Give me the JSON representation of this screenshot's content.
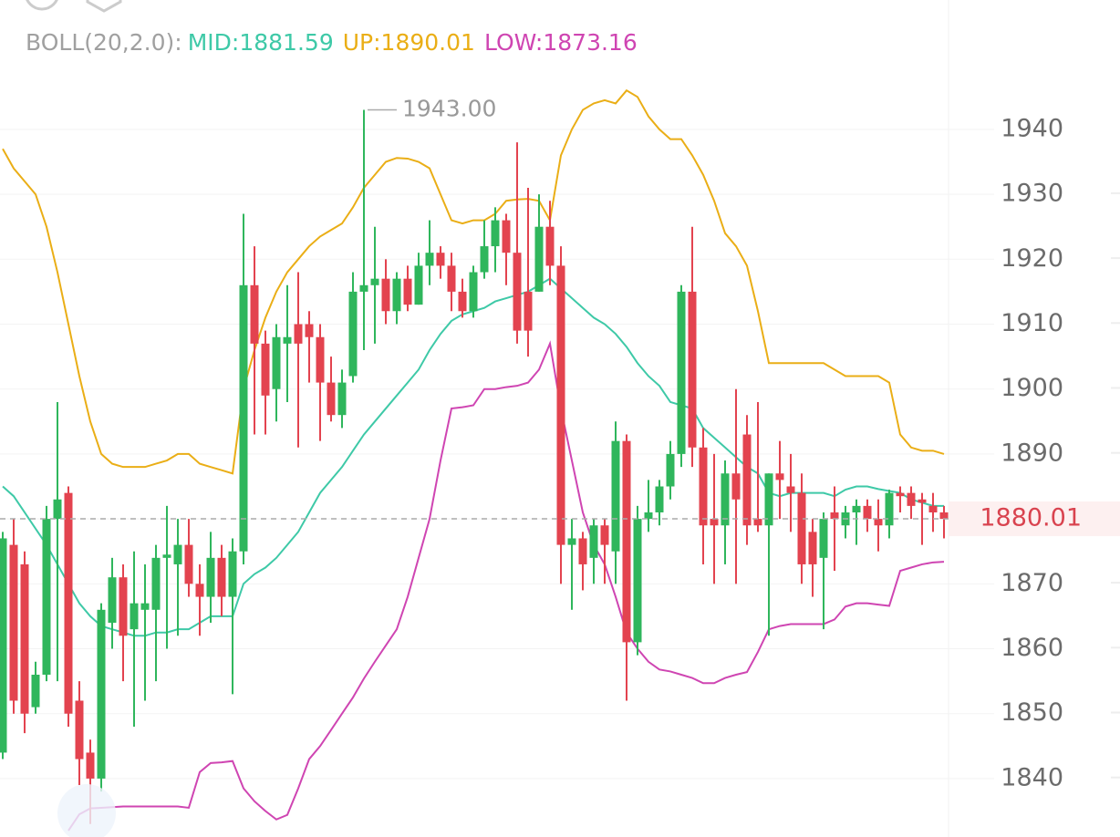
{
  "chart_data": {
    "type": "candlestick",
    "indicator_label": "BOLL(20,2.0):",
    "legend_separator": ":",
    "up_color": "#2fb65c",
    "down_color": "#e3434f",
    "ylim": [
      1831,
      1950
    ],
    "yticks": [
      1840,
      1850,
      1860,
      1870,
      1880,
      1890,
      1900,
      1910,
      1920,
      1930,
      1940
    ],
    "grid": true,
    "last_price": 1880.01,
    "high_label": {
      "value": 1943,
      "label": "1943.00"
    },
    "ohlc": [
      [
        1844,
        1878,
        1843,
        1877
      ],
      [
        1876,
        1880,
        1850,
        1852
      ],
      [
        1873,
        1875,
        1847,
        1850
      ],
      [
        1851,
        1858,
        1850,
        1856
      ],
      [
        1856,
        1882,
        1855,
        1880
      ],
      [
        1880,
        1898,
        1855,
        1883
      ],
      [
        1884,
        1885,
        1848,
        1850
      ],
      [
        1852,
        1855,
        1839,
        1843
      ],
      [
        1844,
        1846,
        1833,
        1840
      ],
      [
        1840,
        1867,
        1838,
        1866
      ],
      [
        1864,
        1874,
        1860,
        1871
      ],
      [
        1871,
        1873,
        1855,
        1862
      ],
      [
        1863,
        1875,
        1848,
        1867
      ],
      [
        1866,
        1873,
        1852,
        1867
      ],
      [
        1866,
        1876,
        1855,
        1874
      ],
      [
        1874,
        1882,
        1860,
        1874.5
      ],
      [
        1873,
        1880,
        1862,
        1876
      ],
      [
        1876,
        1880,
        1868,
        1870
      ],
      [
        1870,
        1873,
        1862,
        1868
      ],
      [
        1868,
        1878,
        1864,
        1874
      ],
      [
        1874,
        1876,
        1865,
        1868
      ],
      [
        1868,
        1877,
        1853,
        1875
      ],
      [
        1875,
        1927,
        1873,
        1916
      ],
      [
        1916,
        1922,
        1893,
        1907
      ],
      [
        1907,
        1909,
        1893,
        1899
      ],
      [
        1900,
        1910,
        1895,
        1908
      ],
      [
        1907,
        1916,
        1898,
        1908
      ],
      [
        1910,
        1918,
        1891,
        1907
      ],
      [
        1910,
        1912,
        1901,
        1908
      ],
      [
        1908,
        1910,
        1892,
        1901
      ],
      [
        1901,
        1905,
        1895,
        1896
      ],
      [
        1896,
        1903,
        1894,
        1901
      ],
      [
        1902,
        1918,
        1901,
        1915
      ],
      [
        1915,
        1943,
        1906,
        1916
      ],
      [
        1916,
        1925,
        1907,
        1917
      ],
      [
        1917,
        1920,
        1910,
        1912
      ],
      [
        1912,
        1918,
        1910,
        1917
      ],
      [
        1917,
        1919,
        1912,
        1913
      ],
      [
        1913,
        1921,
        1913,
        1919
      ],
      [
        1919,
        1926,
        1916,
        1921
      ],
      [
        1921,
        1922,
        1917,
        1919
      ],
      [
        1919,
        1921,
        1912,
        1915
      ],
      [
        1915,
        1917,
        1911,
        1912
      ],
      [
        1912,
        1919,
        1911,
        1918
      ],
      [
        1918,
        1926,
        1917,
        1922
      ],
      [
        1922,
        1928,
        1918,
        1926
      ],
      [
        1926,
        1927,
        1916,
        1921
      ],
      [
        1921,
        1938,
        1907,
        1909
      ],
      [
        1915,
        1931,
        1905,
        1909
      ],
      [
        1915,
        1930,
        1915,
        1925
      ],
      [
        1925,
        1929,
        1916,
        1919
      ],
      [
        1919,
        1922,
        1870,
        1876
      ],
      [
        1876,
        1880,
        1866,
        1877
      ],
      [
        1877,
        1878,
        1869,
        1873
      ],
      [
        1874,
        1880,
        1870,
        1879
      ],
      [
        1879,
        1880,
        1870,
        1876
      ],
      [
        1875,
        1895,
        1870,
        1892
      ],
      [
        1892,
        1893,
        1852,
        1861
      ],
      [
        1861,
        1882,
        1859,
        1880
      ],
      [
        1880,
        1886,
        1878,
        1881
      ],
      [
        1881,
        1886,
        1879,
        1885
      ],
      [
        1885,
        1892,
        1883,
        1890
      ],
      [
        1890,
        1916,
        1888,
        1915
      ],
      [
        1915,
        1925,
        1888,
        1891
      ],
      [
        1891,
        1894,
        1873,
        1879
      ],
      [
        1880,
        1890,
        1870,
        1879
      ],
      [
        1879,
        1889,
        1873,
        1887
      ],
      [
        1887,
        1900,
        1870,
        1883
      ],
      [
        1893,
        1896,
        1876,
        1879
      ],
      [
        1880,
        1898,
        1878,
        1879
      ],
      [
        1879,
        1887,
        1862,
        1887
      ],
      [
        1887,
        1892,
        1880,
        1886
      ],
      [
        1885,
        1890,
        1878,
        1884
      ],
      [
        1884,
        1887,
        1870,
        1873
      ],
      [
        1878,
        1880,
        1868,
        1873
      ],
      [
        1874,
        1881,
        1863,
        1880
      ],
      [
        1881,
        1885,
        1872,
        1880
      ],
      [
        1879,
        1882,
        1877,
        1881
      ],
      [
        1881,
        1883,
        1876,
        1882
      ],
      [
        1882,
        1883,
        1878,
        1880
      ],
      [
        1880,
        1883,
        1875,
        1879
      ],
      [
        1879,
        1884.5,
        1877,
        1884
      ],
      [
        1884,
        1885,
        1881,
        1883.5
      ],
      [
        1884,
        1885,
        1880,
        1882
      ],
      [
        1883,
        1884,
        1876,
        1882.5
      ],
      [
        1882,
        1884,
        1878,
        1881
      ],
      [
        1881,
        1882,
        1877,
        1880
      ]
    ],
    "series": [
      {
        "name": "MID",
        "color": "#3ec9a7",
        "legend_value": 1881.59,
        "values": [
          1885,
          1883.5,
          1881,
          1878.5,
          1876,
          1873,
          1870,
          1867,
          1865,
          1863.5,
          1863,
          1862.5,
          1862,
          1862,
          1862.5,
          1862.5,
          1863,
          1863,
          1864,
          1865,
          1865,
          1865,
          1870,
          1871.5,
          1872.5,
          1874,
          1876,
          1878,
          1881,
          1884,
          1886,
          1888,
          1890.5,
          1893,
          1895,
          1897,
          1899,
          1901,
          1903,
          1906,
          1908.5,
          1910.5,
          1911.5,
          1912,
          1912.5,
          1913.5,
          1914,
          1914.5,
          1915,
          1916,
          1917,
          1915.5,
          1914,
          1912.5,
          1911,
          1910,
          1908.5,
          1906.5,
          1904,
          1902,
          1900.5,
          1898,
          1897.5,
          1897,
          1894,
          1892.5,
          1891,
          1889.5,
          1888,
          1887,
          1884,
          1883.5,
          1884,
          1884,
          1884,
          1884,
          1883.5,
          1884.5,
          1885,
          1885,
          1884.6,
          1884.3,
          1884,
          1883,
          1882.5,
          1882,
          1882
        ]
      },
      {
        "name": "UP",
        "color": "#eaae16",
        "legend_value": 1890.01,
        "values": [
          1937,
          1934,
          1932,
          1930,
          1925,
          1918,
          1910,
          1902,
          1895,
          1890,
          1888.5,
          1888,
          1888,
          1888,
          1888.5,
          1889,
          1890,
          1890,
          1888.5,
          1888,
          1887.5,
          1887,
          1900,
          1906,
          1911,
          1915,
          1918,
          1920,
          1922,
          1923.5,
          1924.5,
          1925.5,
          1928,
          1931,
          1933,
          1935,
          1935.6,
          1935.5,
          1935,
          1934,
          1930,
          1926,
          1925.5,
          1926,
          1926,
          1927,
          1929,
          1929.2,
          1929.3,
          1929,
          1926,
          1936,
          1940,
          1943,
          1944,
          1944.5,
          1944,
          1946,
          1945,
          1942,
          1940,
          1938.5,
          1938.5,
          1936,
          1933,
          1929,
          1924,
          1922,
          1919,
          1912,
          1904,
          1904,
          1904,
          1904,
          1904,
          1904,
          1903,
          1902,
          1902,
          1902,
          1902,
          1901,
          1893,
          1891,
          1890.5,
          1890.5,
          1890
        ]
      },
      {
        "name": "LOW",
        "color": "#cf45b2",
        "legend_value": 1873.16,
        "values": [
          null,
          null,
          null,
          null,
          null,
          null,
          1832,
          1834.5,
          1835.4,
          1835.5,
          1835.6,
          1835.7,
          1835.7,
          1835.7,
          1835.7,
          1835.7,
          1835.7,
          1835.5,
          1841,
          1842.4,
          1842.5,
          1842.7,
          1838.5,
          1836.5,
          1835,
          1833.7,
          1834.4,
          1838.5,
          1843,
          1845,
          1847.5,
          1850,
          1852.5,
          1855.4,
          1858,
          1860.5,
          1863,
          1868,
          1874,
          1880,
          1889,
          1897,
          1897.2,
          1897.5,
          1900,
          1900,
          1900.3,
          1900.5,
          1901,
          1903,
          1907,
          1897,
          1889,
          1881,
          1876,
          1873,
          1868,
          1862.5,
          1860,
          1858,
          1856.8,
          1856.5,
          1856,
          1855.5,
          1854.7,
          1854.7,
          1855.5,
          1856,
          1856.4,
          1859.5,
          1863,
          1863.5,
          1863.8,
          1863.8,
          1863.8,
          1863.8,
          1864.5,
          1866.5,
          1867,
          1867,
          1866.8,
          1866.6,
          1872,
          1872.5,
          1873,
          1873.3,
          1873.4
        ]
      }
    ]
  }
}
